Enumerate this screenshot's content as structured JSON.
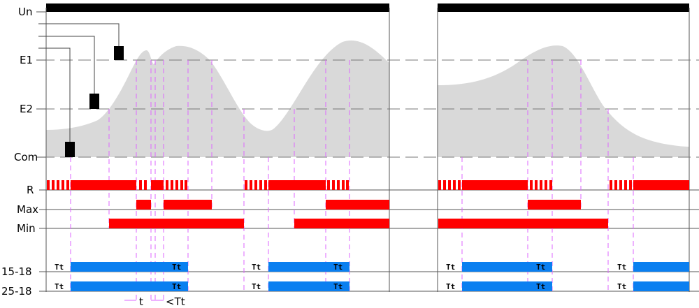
{
  "labels": {
    "un": "Un",
    "e1": "E1",
    "e2": "E2",
    "com": "Com",
    "r": "R",
    "max": "Max",
    "min": "Min",
    "row1": "15-18",
    "row2": "25-18",
    "tt": "Tt",
    "t_note": "t",
    "lt_note": "<Tt"
  },
  "colors": {
    "red": "#ff0000",
    "blue": "#0a7ff0",
    "gray_fill": "#d9d9d9",
    "guide": "#dd66ff",
    "black": "#000000"
  }
}
